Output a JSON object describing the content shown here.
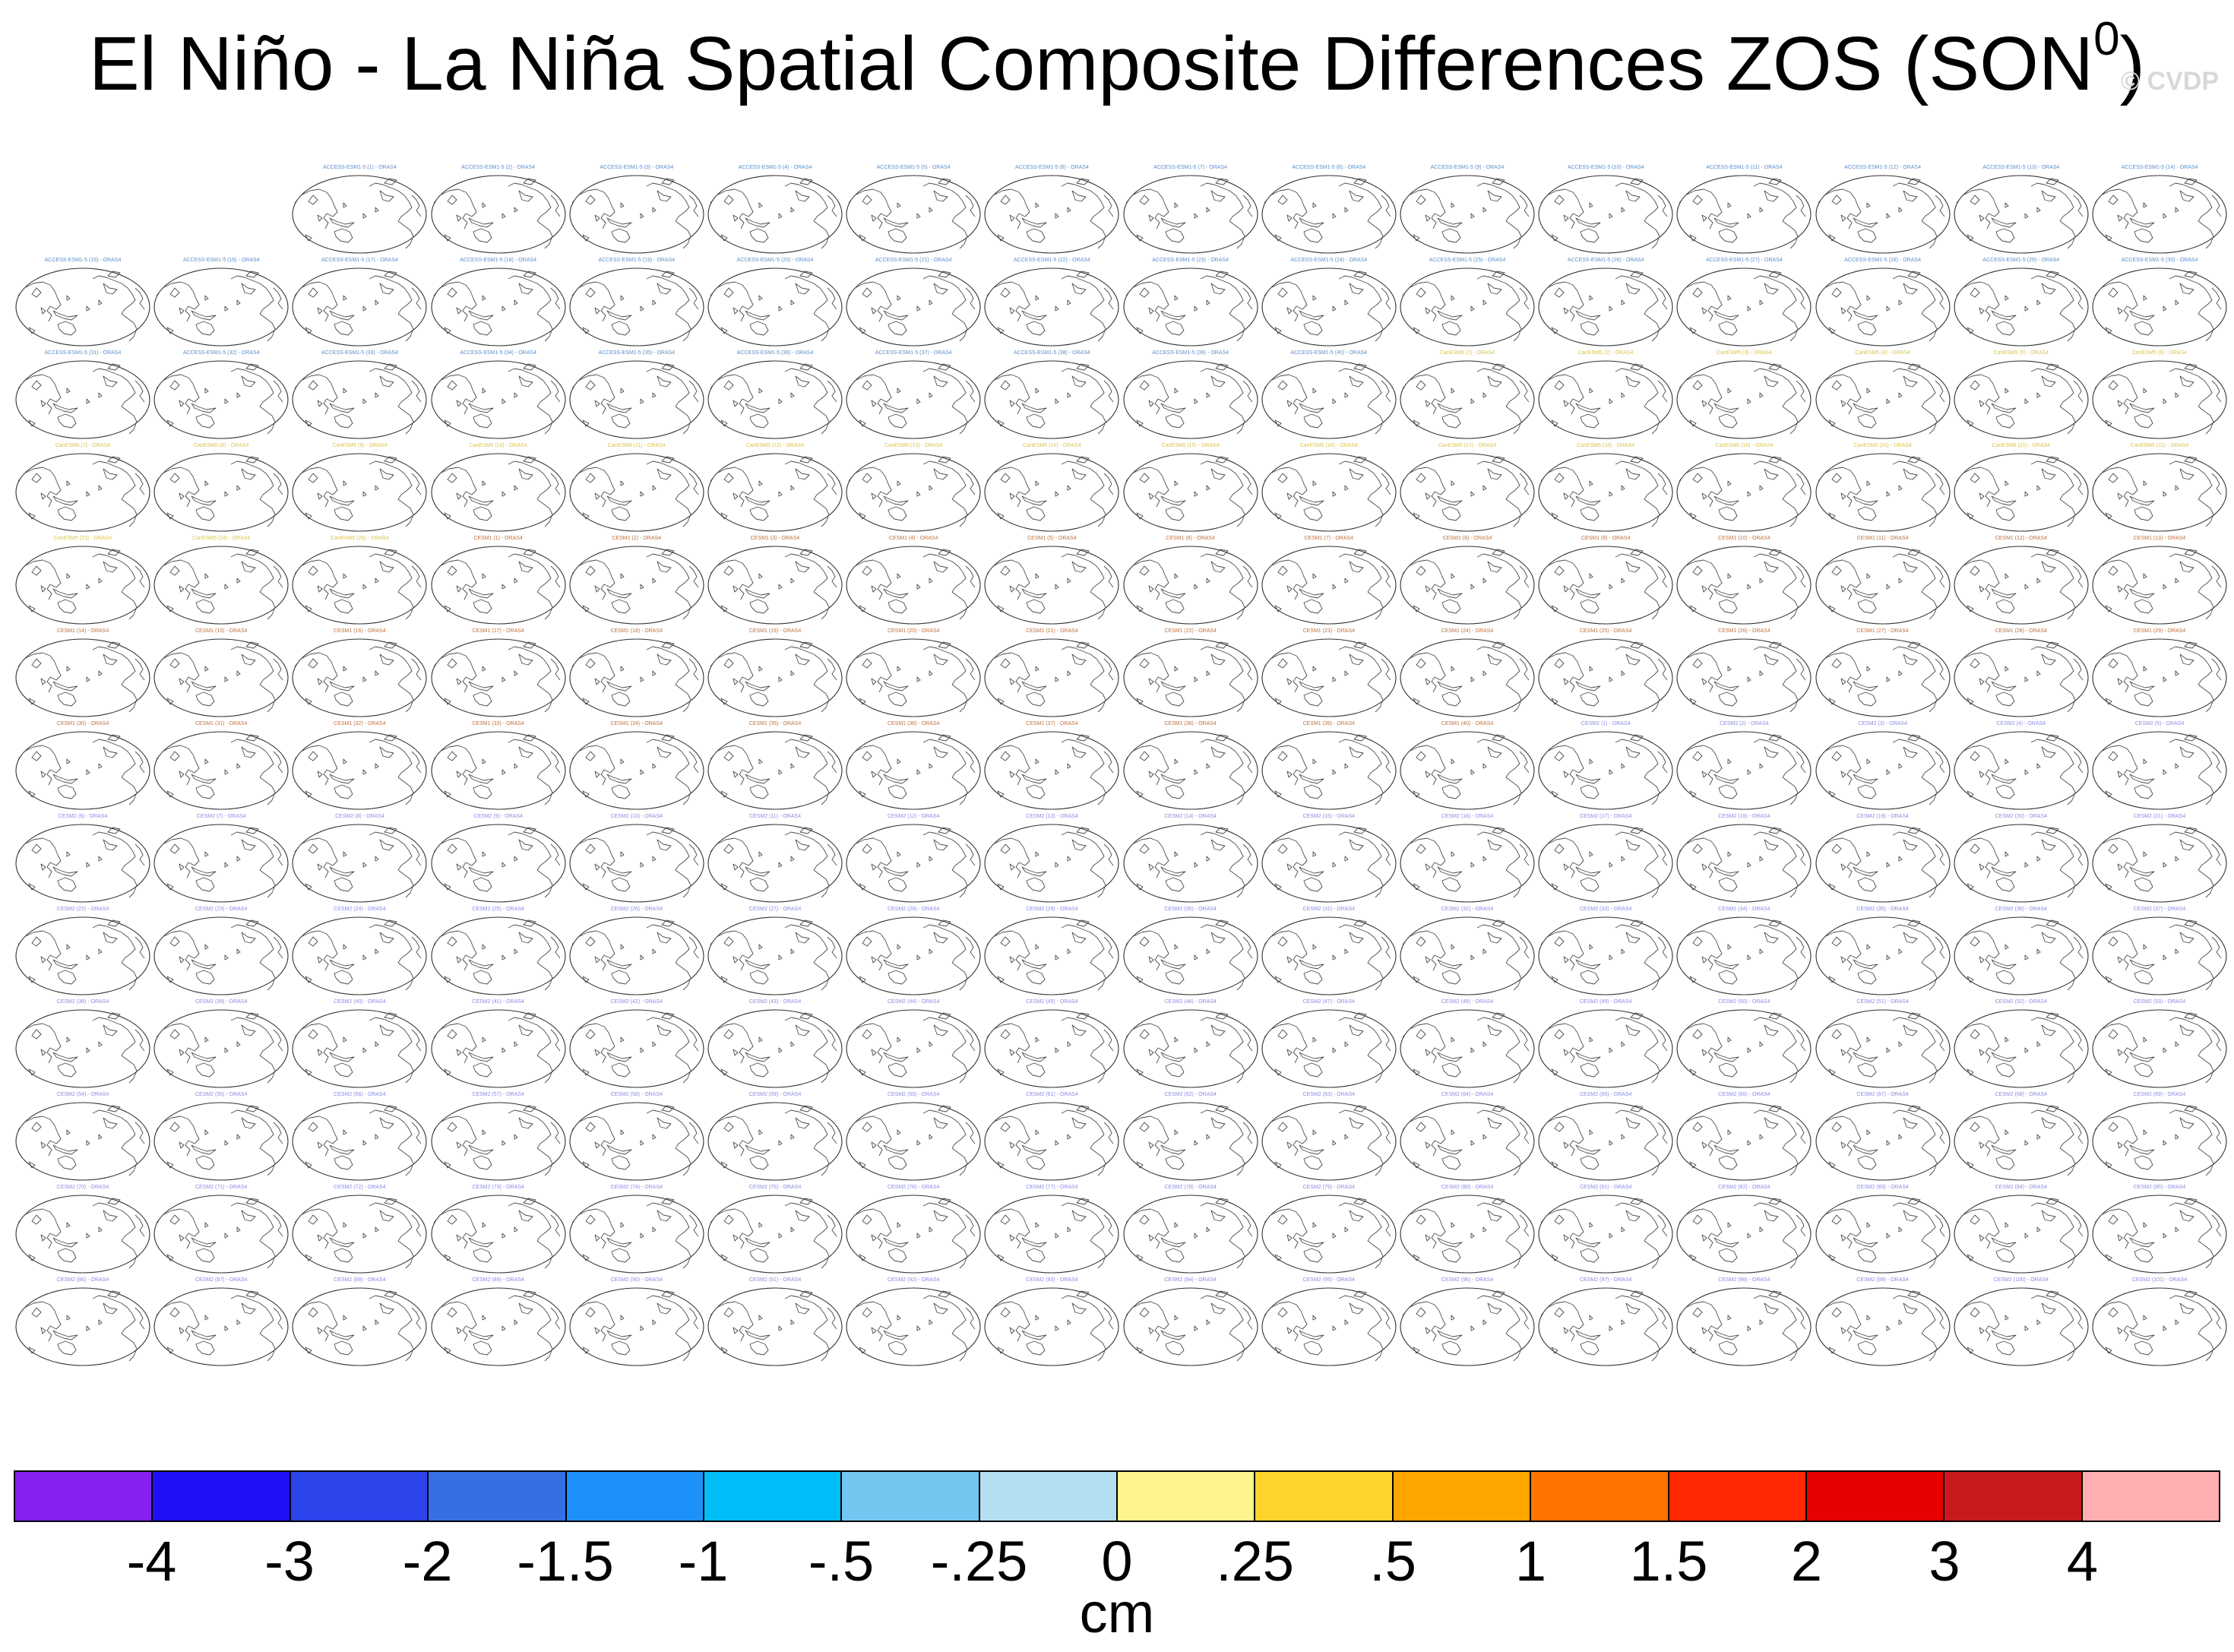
{
  "title": {
    "main": "El Niño - La Niña Spatial Composite Differences ZOS (SON",
    "sup": "0",
    "close": ")"
  },
  "watermark": "© CVDP",
  "chart_data": {
    "type": "heatmap",
    "title": "El Niño - La Niña Spatial Composite Differences ZOS (SON0)",
    "grid_columns": 16,
    "grid_rows": 13,
    "panel_count": 206,
    "first_row_start_column": 2,
    "panel_label_suffix": " - ORAS4",
    "panel_groups": [
      {
        "model": "ACCESS-ESM1-5",
        "count": 40,
        "label_color": "#5b8fc9"
      },
      {
        "model": "CanESM5",
        "count": 25,
        "label_color": "#d8c44a"
      },
      {
        "model": "CESM1",
        "count": 40,
        "label_color": "#c0703a"
      },
      {
        "model": "CESM2",
        "count": 101,
        "label_color": "#8a8ae6"
      }
    ],
    "colorbar": {
      "units": "cm",
      "ticks": [
        "-4",
        "-3",
        "-2",
        "-1.5",
        "-1",
        "-.5",
        "-.25",
        "0",
        ".25",
        ".5",
        "1",
        "1.5",
        "2",
        "3",
        "4"
      ],
      "colors": [
        "#8420f0",
        "#1f0ff5",
        "#2c44ec",
        "#3470e4",
        "#1e90fa",
        "#00bcf7",
        "#72c6f0",
        "#b4dff2",
        "#fff58c",
        "#ffd42a",
        "#ffa500",
        "#ff7300",
        "#ff2800",
        "#e60000",
        "#c81a1e",
        "#ffafaf"
      ]
    }
  }
}
